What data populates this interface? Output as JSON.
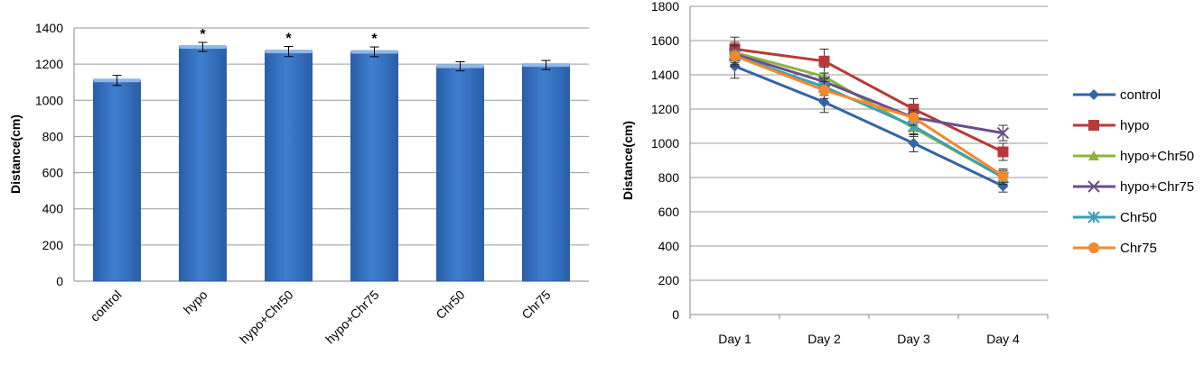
{
  "chart_data": [
    {
      "type": "bar",
      "categories": [
        "control",
        "hypo",
        "hypo+Chr50",
        "hypo+Chr75",
        "Chr50",
        "Chr75"
      ],
      "values": [
        1110,
        1295,
        1270,
        1268,
        1188,
        1195
      ],
      "errors": [
        28,
        25,
        28,
        27,
        25,
        25
      ],
      "significance": [
        "",
        "*",
        "*",
        "*",
        "",
        ""
      ],
      "ylabel": "Distance(cm)",
      "ylim": [
        0,
        1400
      ],
      "yticks": [
        0,
        200,
        400,
        600,
        800,
        1000,
        1200,
        1400
      ],
      "bar_color": "#3f7fd0",
      "grid": true
    },
    {
      "type": "line",
      "x": [
        "Day 1",
        "Day 2",
        "Day 3",
        "Day 4"
      ],
      "ylabel": "Distance(cm)",
      "ylim": [
        0,
        1800
      ],
      "yticks": [
        0,
        200,
        400,
        600,
        800,
        1000,
        1200,
        1400,
        1600,
        1800
      ],
      "grid": true,
      "legend_position": "right",
      "series": [
        {
          "name": "control",
          "values": [
            1450,
            1240,
            1000,
            750
          ],
          "errors": [
            70,
            60,
            50,
            35
          ],
          "color": "#3465a4",
          "marker": "diamond"
        },
        {
          "name": "hypo",
          "values": [
            1550,
            1480,
            1200,
            950
          ],
          "errors": [
            70,
            70,
            60,
            50
          ],
          "color": "#b83a38",
          "marker": "square"
        },
        {
          "name": "hypo+Chr50",
          "values": [
            1530,
            1390,
            1090,
            800
          ],
          "errors": [
            60,
            55,
            50,
            40
          ],
          "color": "#8db33e",
          "marker": "triangle"
        },
        {
          "name": "hypo+Chr75",
          "values": [
            1520,
            1360,
            1150,
            1060
          ],
          "errors": [
            60,
            50,
            45,
            45
          ],
          "color": "#6a4e8c",
          "marker": "x"
        },
        {
          "name": "Chr50",
          "values": [
            1510,
            1330,
            1100,
            800
          ],
          "errors": [
            60,
            50,
            45,
            40
          ],
          "color": "#3aa0b8",
          "marker": "star"
        },
        {
          "name": "Chr75",
          "values": [
            1510,
            1310,
            1150,
            810
          ],
          "errors": [
            60,
            50,
            45,
            40
          ],
          "color": "#f08a2c",
          "marker": "circle"
        }
      ]
    }
  ]
}
